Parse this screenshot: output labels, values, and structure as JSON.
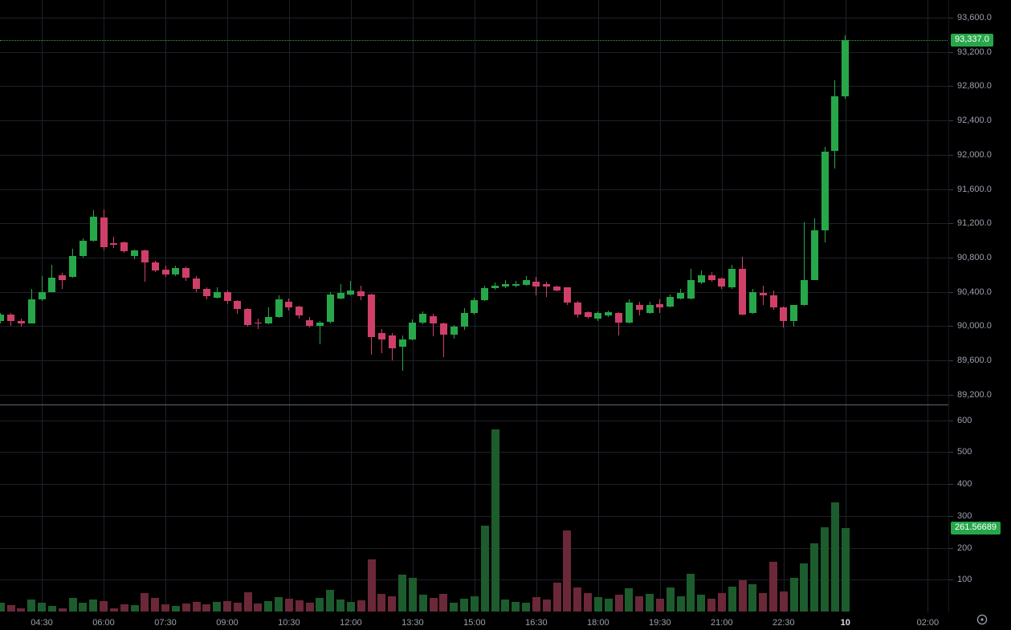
{
  "colors": {
    "background": "#000000",
    "grid": "#1d212a",
    "up": "#27a74a",
    "down": "#cf4069",
    "volume_up": "#1d5c2d",
    "volume_down": "#6b2838",
    "axis_text": "#9aa0ab",
    "axis_text_bold": "#d8dce4",
    "pane_separator": "#5c6574",
    "last_price_badge_bg": "#27a74a",
    "last_volume_badge_bg": "#27a74a",
    "badge_text": "#ffffff"
  },
  "price_axis": {
    "last_price_label": "93,337.0",
    "labels": [
      {
        "label": "93,600.0",
        "value": 93600
      },
      {
        "label": "93,200.0",
        "value": 93200
      },
      {
        "label": "92,800.0",
        "value": 92800
      },
      {
        "label": "92,400.0",
        "value": 92400
      },
      {
        "label": "92,000.0",
        "value": 92000
      },
      {
        "label": "91,600.0",
        "value": 91600
      },
      {
        "label": "91,200.0",
        "value": 91200
      },
      {
        "label": "90,800.0",
        "value": 90800
      },
      {
        "label": "90,400.0",
        "value": 90400
      },
      {
        "label": "90,000.0",
        "value": 90000
      },
      {
        "label": "89,600.0",
        "value": 89600
      },
      {
        "label": "89,200.0",
        "value": 89200
      }
    ]
  },
  "volume_axis": {
    "last_volume_label": "261.56689",
    "labels": [
      {
        "label": "600",
        "value": 600
      },
      {
        "label": "500",
        "value": 500
      },
      {
        "label": "400",
        "value": 400
      },
      {
        "label": "300",
        "value": 300
      },
      {
        "label": "200",
        "value": 200
      },
      {
        "label": "100",
        "value": 100
      }
    ]
  },
  "time_axis": {
    "labels": [
      {
        "label": "04:30",
        "index": 4,
        "bold": false
      },
      {
        "label": "06:00",
        "index": 10,
        "bold": false
      },
      {
        "label": "07:30",
        "index": 16,
        "bold": false
      },
      {
        "label": "09:00",
        "index": 22,
        "bold": false
      },
      {
        "label": "10:30",
        "index": 28,
        "bold": false
      },
      {
        "label": "12:00",
        "index": 34,
        "bold": false
      },
      {
        "label": "13:30",
        "index": 40,
        "bold": false
      },
      {
        "label": "15:00",
        "index": 46,
        "bold": false
      },
      {
        "label": "16:30",
        "index": 52,
        "bold": false
      },
      {
        "label": "18:00",
        "index": 58,
        "bold": false
      },
      {
        "label": "19:30",
        "index": 64,
        "bold": false
      },
      {
        "label": "21:00",
        "index": 70,
        "bold": false
      },
      {
        "label": "22:30",
        "index": 76,
        "bold": false
      },
      {
        "label": "10",
        "index": 82,
        "bold": true
      },
      {
        "label": "02:00",
        "index": 90,
        "bold": false
      }
    ]
  },
  "icons": {
    "bottom_right": "gear-icon"
  },
  "chart_data": {
    "type": "candlestick",
    "interval_minutes": 15,
    "panes": [
      "price",
      "volume"
    ],
    "grid": true,
    "price_axis_side": "right",
    "visible_price_range": [
      89000,
      93700
    ],
    "visible_volume_range": [
      0,
      620
    ],
    "last_price": 93337.0,
    "last_volume": 261.56689,
    "columns": [
      "time",
      "open",
      "high",
      "low",
      "close",
      "volume"
    ],
    "candles": [
      [
        "03:30",
        90060,
        90150,
        90030,
        90135,
        29
      ],
      [
        "03:45",
        90135,
        90150,
        90005,
        90060,
        19
      ],
      [
        "04:00",
        90060,
        90090,
        89995,
        90035,
        11
      ],
      [
        "04:15",
        90035,
        90435,
        90030,
        90310,
        39
      ],
      [
        "04:30",
        90310,
        90580,
        90290,
        90400,
        29
      ],
      [
        "04:45",
        90400,
        90715,
        90395,
        90565,
        17
      ],
      [
        "05:00",
        90590,
        90620,
        90435,
        90540,
        11
      ],
      [
        "05:15",
        90570,
        90900,
        90560,
        90820,
        42
      ],
      [
        "05:30",
        90820,
        91025,
        90800,
        90995,
        27
      ],
      [
        "05:45",
        90995,
        91355,
        90985,
        91275,
        37
      ],
      [
        "06:00",
        91270,
        91365,
        90885,
        90920,
        32
      ],
      [
        "06:15",
        90970,
        91040,
        90915,
        90950,
        11
      ],
      [
        "06:30",
        90975,
        90985,
        90855,
        90870,
        24
      ],
      [
        "06:45",
        90815,
        90890,
        90780,
        90885,
        19
      ],
      [
        "07:00",
        90885,
        90895,
        90520,
        90745,
        58
      ],
      [
        "07:15",
        90745,
        90765,
        90625,
        90645,
        42
      ],
      [
        "07:30",
        90660,
        90705,
        90570,
        90600,
        22
      ],
      [
        "07:45",
        90600,
        90705,
        90580,
        90680,
        18
      ],
      [
        "08:00",
        90680,
        90700,
        90530,
        90560,
        26
      ],
      [
        "08:15",
        90560,
        90580,
        90395,
        90430,
        31
      ],
      [
        "08:30",
        90430,
        90455,
        90315,
        90350,
        24
      ],
      [
        "08:45",
        90330,
        90450,
        90320,
        90400,
        30
      ],
      [
        "09:00",
        90400,
        90420,
        90255,
        90290,
        33
      ],
      [
        "09:15",
        90290,
        90300,
        90145,
        90200,
        28
      ],
      [
        "09:30",
        90200,
        90210,
        89990,
        90010,
        60
      ],
      [
        "09:45",
        90040,
        90090,
        89965,
        90030,
        25
      ],
      [
        "10:00",
        90030,
        90215,
        90020,
        90105,
        33
      ],
      [
        "10:15",
        90105,
        90355,
        90095,
        90310,
        46
      ],
      [
        "10:30",
        90285,
        90320,
        90180,
        90215,
        40
      ],
      [
        "10:45",
        90230,
        90240,
        90090,
        90120,
        35
      ],
      [
        "11:00",
        90065,
        90110,
        89980,
        90000,
        27
      ],
      [
        "11:15",
        90005,
        90060,
        89790,
        90045,
        44
      ],
      [
        "11:30",
        90045,
        90400,
        90035,
        90370,
        67
      ],
      [
        "11:45",
        90325,
        90495,
        90315,
        90385,
        38
      ],
      [
        "12:00",
        90370,
        90525,
        90360,
        90415,
        30
      ],
      [
        "12:15",
        90410,
        90470,
        90300,
        90345,
        35
      ],
      [
        "12:30",
        90370,
        90380,
        89665,
        89870,
        164
      ],
      [
        "12:45",
        89915,
        89965,
        89685,
        89840,
        55
      ],
      [
        "13:00",
        89890,
        89920,
        89600,
        89740,
        48
      ],
      [
        "13:15",
        89760,
        89890,
        89480,
        89840,
        117
      ],
      [
        "13:30",
        89840,
        90075,
        89830,
        90040,
        105
      ],
      [
        "13:45",
        90040,
        90170,
        90020,
        90140,
        52
      ],
      [
        "14:00",
        90115,
        90140,
        89885,
        90030,
        44
      ],
      [
        "14:15",
        90030,
        90040,
        89640,
        89900,
        56
      ],
      [
        "14:30",
        89900,
        90010,
        89850,
        89990,
        28
      ],
      [
        "14:45",
        89990,
        90205,
        89960,
        90150,
        41
      ],
      [
        "15:00",
        90150,
        90330,
        90130,
        90300,
        48
      ],
      [
        "15:15",
        90300,
        90470,
        90290,
        90440,
        270
      ],
      [
        "15:30",
        90440,
        90505,
        90420,
        90470,
        570
      ],
      [
        "15:45",
        90460,
        90540,
        90440,
        90495,
        38
      ],
      [
        "16:00",
        90475,
        90525,
        90455,
        90490,
        30
      ],
      [
        "16:15",
        90480,
        90580,
        90470,
        90540,
        28
      ],
      [
        "16:30",
        90520,
        90575,
        90355,
        90465,
        45
      ],
      [
        "16:45",
        90490,
        90520,
        90340,
        90460,
        38
      ],
      [
        "17:00",
        90460,
        90470,
        90405,
        90415,
        90
      ],
      [
        "17:15",
        90450,
        90455,
        90245,
        90275,
        255
      ],
      [
        "17:30",
        90275,
        90290,
        90095,
        90135,
        75
      ],
      [
        "17:45",
        90165,
        90175,
        90090,
        90105,
        58
      ],
      [
        "18:00",
        90090,
        90175,
        90055,
        90150,
        46
      ],
      [
        "18:15",
        90120,
        90180,
        90105,
        90165,
        40
      ],
      [
        "18:30",
        90150,
        90165,
        89890,
        90040,
        54
      ],
      [
        "18:45",
        90040,
        90310,
        90030,
        90275,
        72
      ],
      [
        "19:00",
        90250,
        90280,
        90120,
        90185,
        48
      ],
      [
        "19:15",
        90150,
        90280,
        90140,
        90245,
        55
      ],
      [
        "19:30",
        90260,
        90310,
        90150,
        90215,
        40
      ],
      [
        "19:45",
        90225,
        90370,
        90215,
        90340,
        76
      ],
      [
        "20:00",
        90320,
        90435,
        90310,
        90385,
        47
      ],
      [
        "20:15",
        90325,
        90665,
        90315,
        90540,
        118
      ],
      [
        "20:30",
        90510,
        90645,
        90490,
        90590,
        52
      ],
      [
        "20:45",
        90595,
        90635,
        90520,
        90540,
        41
      ],
      [
        "21:00",
        90555,
        90565,
        90430,
        90465,
        57
      ],
      [
        "21:15",
        90450,
        90715,
        90430,
        90665,
        78
      ],
      [
        "21:30",
        90665,
        90810,
        90120,
        90135,
        98
      ],
      [
        "21:45",
        90150,
        90435,
        90140,
        90400,
        86
      ],
      [
        "22:00",
        90390,
        90470,
        90245,
        90360,
        58
      ],
      [
        "22:15",
        90360,
        90420,
        90190,
        90215,
        156
      ],
      [
        "22:30",
        90215,
        90230,
        89985,
        90060,
        62
      ],
      [
        "22:45",
        90060,
        90250,
        89995,
        90245,
        105
      ],
      [
        "23:00",
        90245,
        91210,
        90240,
        90540,
        150
      ],
      [
        "23:15",
        90540,
        91260,
        90535,
        91120,
        215
      ],
      [
        "23:30",
        91120,
        92090,
        90975,
        92040,
        265
      ],
      [
        "23:45",
        92040,
        92870,
        91840,
        92680,
        342
      ],
      [
        "00:00",
        92680,
        93390,
        92650,
        93337,
        262
      ]
    ]
  }
}
